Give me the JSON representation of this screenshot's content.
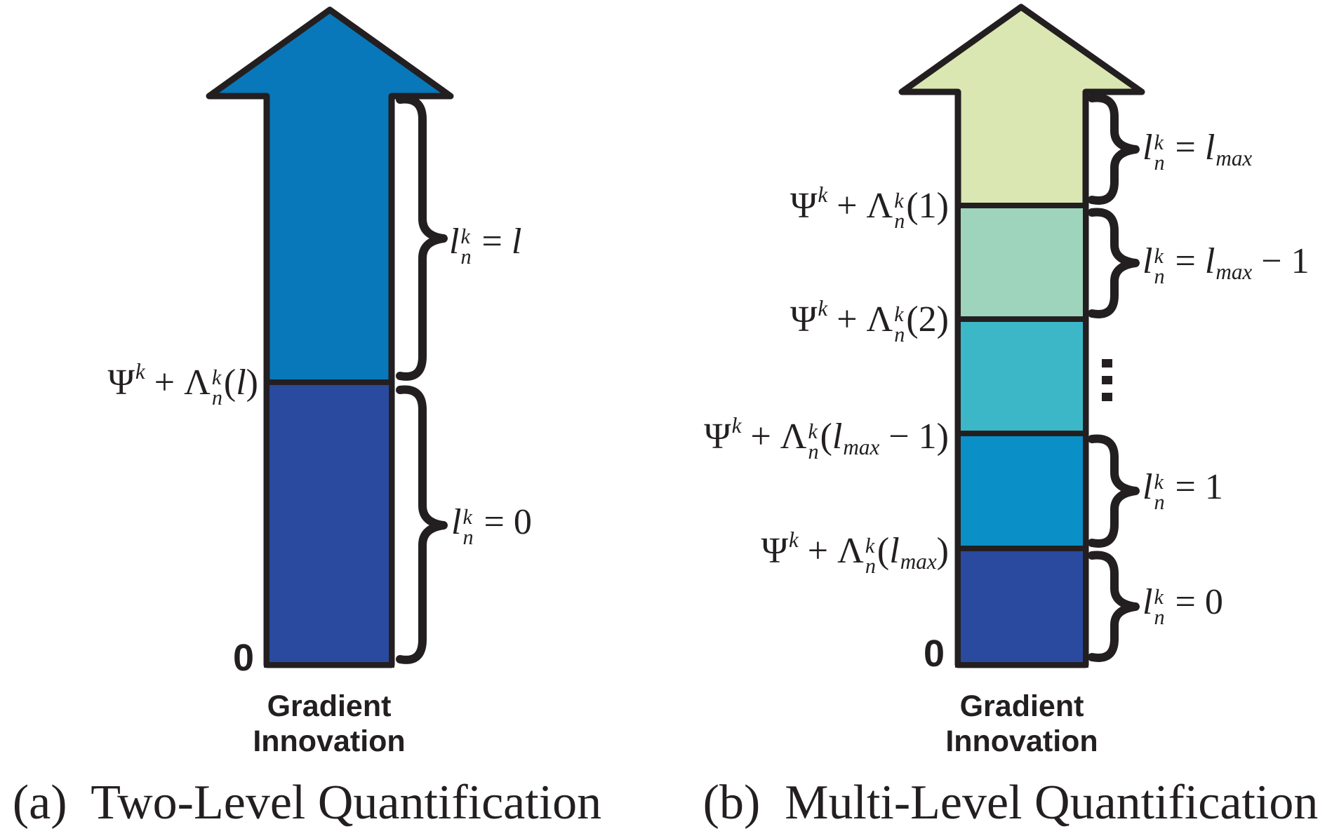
{
  "panels": {
    "left": {
      "caption": "(a)  Two-Level Quantification",
      "origin_label": "0",
      "axis_label_line1": "Gradient",
      "axis_label_line2": "Innovation",
      "colors": {
        "upper_segment": "#0878bb",
        "lower_segment": "#2a4a9f",
        "outline": "#231f20"
      },
      "boundary_label": [
        {
          "s": "b",
          "c": "Ψ"
        },
        {
          "s": "sup",
          "c": "k"
        },
        {
          "s": "b",
          "c": " + "
        },
        {
          "s": "b",
          "c": "Λ"
        },
        {
          "s": "ss",
          "up": "k",
          "dn": "n"
        },
        {
          "s": "b",
          "c": "("
        },
        {
          "s": "i",
          "c": "l"
        },
        {
          "s": "b",
          "c": ")"
        }
      ],
      "brace_label_upper": [
        {
          "s": "i",
          "c": "l"
        },
        {
          "s": "ss",
          "up": "k",
          "dn": "n"
        },
        {
          "s": "b",
          "c": " = "
        },
        {
          "s": "i",
          "c": "l"
        }
      ],
      "brace_label_lower": [
        {
          "s": "i",
          "c": "l"
        },
        {
          "s": "ss",
          "up": "k",
          "dn": "n"
        },
        {
          "s": "b",
          "c": " = "
        },
        {
          "s": "b",
          "c": "0"
        }
      ]
    },
    "right": {
      "caption": "(b)  Multi-Level Quantification",
      "origin_label": "0",
      "axis_label_line1": "Gradient",
      "axis_label_line2": "Innovation",
      "colors": {
        "segment1_top": "#dbe7b2",
        "segment2": "#9ed3bc",
        "segment3": "#3cb7c8",
        "segment4": "#0a8fc6",
        "segment5_bottom": "#2a4a9f",
        "outline": "#231f20"
      },
      "boundary_labels": {
        "b1": [
          {
            "s": "b",
            "c": "Ψ"
          },
          {
            "s": "sup",
            "c": "k"
          },
          {
            "s": "b",
            "c": " + "
          },
          {
            "s": "b",
            "c": "Λ"
          },
          {
            "s": "ss",
            "up": "k",
            "dn": "n"
          },
          {
            "s": "b",
            "c": "("
          },
          {
            "s": "b",
            "c": "1"
          },
          {
            "s": "b",
            "c": ")"
          }
        ],
        "b2": [
          {
            "s": "b",
            "c": "Ψ"
          },
          {
            "s": "sup",
            "c": "k"
          },
          {
            "s": "b",
            "c": " + "
          },
          {
            "s": "b",
            "c": "Λ"
          },
          {
            "s": "ss",
            "up": "k",
            "dn": "n"
          },
          {
            "s": "b",
            "c": "("
          },
          {
            "s": "b",
            "c": "2"
          },
          {
            "s": "b",
            "c": ")"
          }
        ],
        "b3": [
          {
            "s": "b",
            "c": "Ψ"
          },
          {
            "s": "sup",
            "c": "k"
          },
          {
            "s": "b",
            "c": " + "
          },
          {
            "s": "b",
            "c": "Λ"
          },
          {
            "s": "ss",
            "up": "k",
            "dn": "n"
          },
          {
            "s": "b",
            "c": "("
          },
          {
            "s": "i",
            "c": "l"
          },
          {
            "s": "sub",
            "c": "max"
          },
          {
            "s": "b",
            "c": " − "
          },
          {
            "s": "b",
            "c": "1"
          },
          {
            "s": "b",
            "c": ")"
          }
        ],
        "b4": [
          {
            "s": "b",
            "c": "Ψ"
          },
          {
            "s": "sup",
            "c": "k"
          },
          {
            "s": "b",
            "c": " + "
          },
          {
            "s": "b",
            "c": "Λ"
          },
          {
            "s": "ss",
            "up": "k",
            "dn": "n"
          },
          {
            "s": "b",
            "c": "("
          },
          {
            "s": "i",
            "c": "l"
          },
          {
            "s": "sub",
            "c": "max"
          },
          {
            "s": "b",
            "c": ")"
          }
        ]
      },
      "brace_labels": {
        "l1": [
          {
            "s": "i",
            "c": "l"
          },
          {
            "s": "ss",
            "up": "k",
            "dn": "n"
          },
          {
            "s": "b",
            "c": " = "
          },
          {
            "s": "i",
            "c": "l"
          },
          {
            "s": "sub",
            "c": "max"
          }
        ],
        "l2": [
          {
            "s": "i",
            "c": "l"
          },
          {
            "s": "ss",
            "up": "k",
            "dn": "n"
          },
          {
            "s": "b",
            "c": " = "
          },
          {
            "s": "i",
            "c": "l"
          },
          {
            "s": "sub",
            "c": "max"
          },
          {
            "s": "b",
            "c": " − "
          },
          {
            "s": "b",
            "c": "1"
          }
        ],
        "l3": [
          {
            "s": "i",
            "c": "l"
          },
          {
            "s": "ss",
            "up": "k",
            "dn": "n"
          },
          {
            "s": "b",
            "c": " = "
          },
          {
            "s": "b",
            "c": "1"
          }
        ],
        "l4": [
          {
            "s": "i",
            "c": "l"
          },
          {
            "s": "ss",
            "up": "k",
            "dn": "n"
          },
          {
            "s": "b",
            "c": " = "
          },
          {
            "s": "b",
            "c": "0"
          }
        ]
      },
      "ellipsis": "vertical-ellipsis"
    }
  }
}
